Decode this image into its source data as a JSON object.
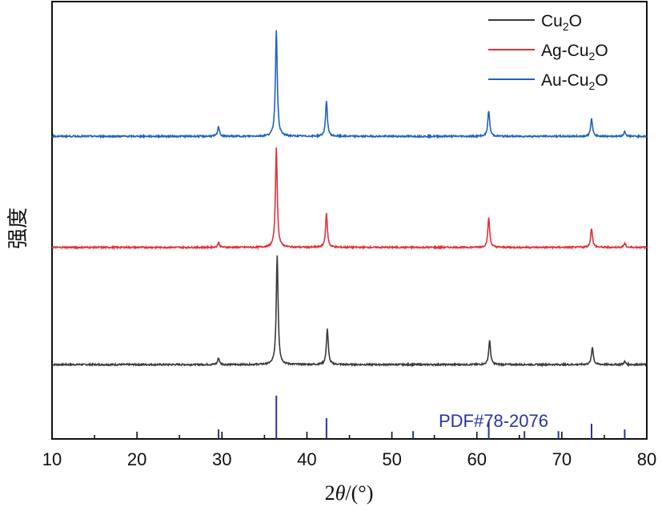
{
  "chart_data": {
    "type": "line",
    "title": "",
    "xlabel": "2θ/(°)",
    "ylabel": "强度",
    "xlim": [
      10,
      80
    ],
    "ylim": [
      0,
      100
    ],
    "xticks": [
      10,
      20,
      30,
      40,
      50,
      60,
      70,
      80
    ],
    "y_units": "a.u. (stacked, offset)",
    "grid": false,
    "legend_position": "top-right",
    "series": [
      {
        "name": "Cu2O",
        "label_main": "Cu",
        "label_sub": "2",
        "label_end": "O",
        "color": "#3a3a3a",
        "baseline": 17,
        "peaks": [
          {
            "x": 29.6,
            "h": 1.5
          },
          {
            "x": 36.5,
            "h": 25
          },
          {
            "x": 42.4,
            "h": 8.2
          },
          {
            "x": 61.5,
            "h": 5.5
          },
          {
            "x": 73.6,
            "h": 4
          },
          {
            "x": 77.4,
            "h": 0.7
          }
        ]
      },
      {
        "name": "Ag-Cu2O",
        "label_main": "Ag-Cu",
        "label_sub": "2",
        "label_end": "O",
        "color": "#e0313a",
        "baseline": 43.8,
        "peaks": [
          {
            "x": 29.6,
            "h": 1.1
          },
          {
            "x": 36.4,
            "h": 22.7
          },
          {
            "x": 42.3,
            "h": 7.7
          },
          {
            "x": 61.4,
            "h": 6.8
          },
          {
            "x": 73.5,
            "h": 4.4
          },
          {
            "x": 77.4,
            "h": 0.9
          }
        ]
      },
      {
        "name": "Au-Cu2O",
        "label_main": "Au-Cu",
        "label_sub": "2",
        "label_end": "O",
        "color": "#1f63c0",
        "baseline": 69.2,
        "peaks": [
          {
            "x": 29.6,
            "h": 2.2
          },
          {
            "x": 36.4,
            "h": 24.4
          },
          {
            "x": 42.3,
            "h": 7.9
          },
          {
            "x": 61.4,
            "h": 5.9
          },
          {
            "x": 73.5,
            "h": 4
          },
          {
            "x": 77.4,
            "h": 1.1
          }
        ]
      }
    ],
    "reference": {
      "label": "PDF#78-2076",
      "color": "#2a35a0",
      "lines": [
        {
          "x": 29.6,
          "h": 22
        },
        {
          "x": 36.4,
          "h": 100
        },
        {
          "x": 42.3,
          "h": 48
        },
        {
          "x": 52.5,
          "h": 18
        },
        {
          "x": 61.4,
          "h": 40
        },
        {
          "x": 65.6,
          "h": 18
        },
        {
          "x": 69.6,
          "h": 18
        },
        {
          "x": 73.5,
          "h": 35
        },
        {
          "x": 77.4,
          "h": 22
        }
      ]
    }
  }
}
